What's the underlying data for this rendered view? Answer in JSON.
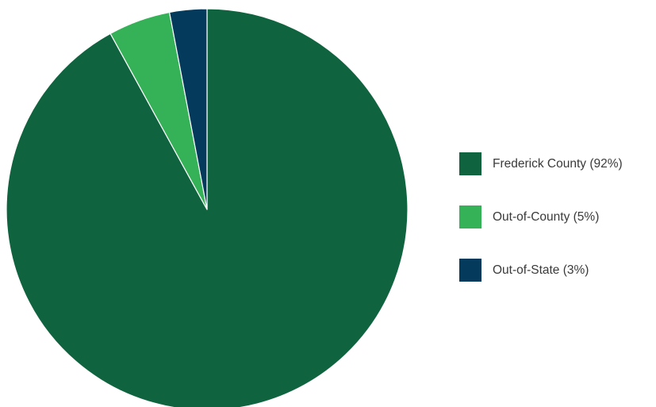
{
  "chart_data": {
    "type": "pie",
    "title": "",
    "start_angle_deg": 0,
    "direction": "clockwise",
    "slices": [
      {
        "label": "Frederick County (92%)",
        "value": 92,
        "color": "#10633f"
      },
      {
        "label": "Out-of-County (5%)",
        "value": 5,
        "color": "#35b257"
      },
      {
        "label": "Out-of-State (3%)",
        "value": 3,
        "color": "#043a5c"
      }
    ],
    "legend_position": "right"
  }
}
